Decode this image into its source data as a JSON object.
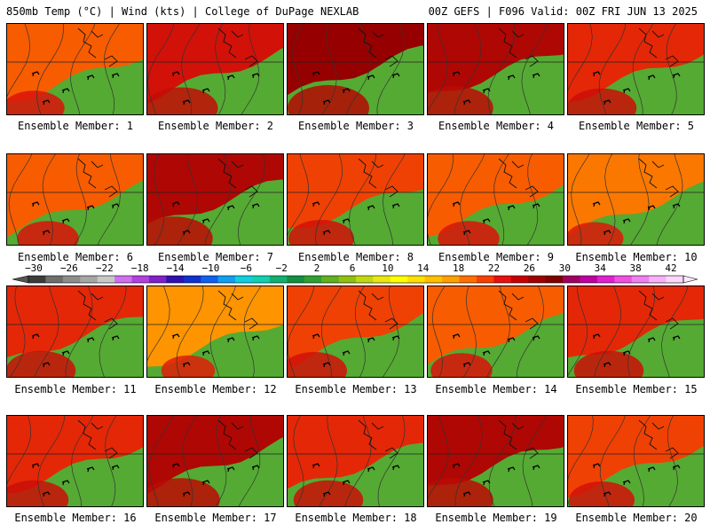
{
  "header": {
    "left": "850mb Temp (°C) | Wind (kts) | College of DuPage NEXLAB",
    "right": "00Z GEFS | F096 Valid: 00Z FRI JUN 13 2025"
  },
  "members": [
    {
      "label": "Ensemble Member: 1",
      "warmth": 0.55
    },
    {
      "label": "Ensemble Member: 2",
      "warmth": 0.7
    },
    {
      "label": "Ensemble Member: 3",
      "warmth": 0.8
    },
    {
      "label": "Ensemble Member: 4",
      "warmth": 0.75
    },
    {
      "label": "Ensemble Member: 5",
      "warmth": 0.65
    },
    {
      "label": "Ensemble Member: 6",
      "warmth": 0.55
    },
    {
      "label": "Ensemble Member: 7",
      "warmth": 0.75
    },
    {
      "label": "Ensemble Member: 8",
      "warmth": 0.6
    },
    {
      "label": "Ensemble Member: 9",
      "warmth": 0.55
    },
    {
      "label": "Ensemble Member: 10",
      "warmth": 0.5
    },
    {
      "label": "Ensemble Member: 11",
      "warmth": 0.65
    },
    {
      "label": "Ensemble Member: 12",
      "warmth": 0.45
    },
    {
      "label": "Ensemble Member: 13",
      "warmth": 0.6
    },
    {
      "label": "Ensemble Member: 14",
      "warmth": 0.55
    },
    {
      "label": "Ensemble Member: 15",
      "warmth": 0.65
    },
    {
      "label": "Ensemble Member: 16",
      "warmth": 0.65
    },
    {
      "label": "Ensemble Member: 17",
      "warmth": 0.75
    },
    {
      "label": "Ensemble Member: 18",
      "warmth": 0.65
    },
    {
      "label": "Ensemble Member: 19",
      "warmth": 0.75
    },
    {
      "label": "Ensemble Member: 20",
      "warmth": 0.6
    }
  ],
  "colorbar": {
    "labels": [
      "-30",
      "-26",
      "-22",
      "-18",
      "-14",
      "-10",
      "-6",
      "-2",
      "2",
      "6",
      "10",
      "14",
      "18",
      "22",
      "26",
      "30",
      "34",
      "38",
      "42"
    ],
    "colors": [
      "#3c3c3c",
      "#6e6e6e",
      "#8c8c8c",
      "#a6a6a6",
      "#c8c8c8",
      "#d070f0",
      "#b040e0",
      "#8020c8",
      "#3010b0",
      "#1030d0",
      "#1060f0",
      "#10a0f0",
      "#10d0e0",
      "#10d0b0",
      "#10b070",
      "#109040",
      "#30a030",
      "#60b020",
      "#90c010",
      "#c0d810",
      "#e8e810",
      "#ffff00",
      "#ffe000",
      "#ffc000",
      "#ffa000",
      "#ff7000",
      "#f84000",
      "#e81010",
      "#c80000",
      "#a00000",
      "#800000",
      "#a00060",
      "#c000a0",
      "#e020d0",
      "#f050e0",
      "#f080f0",
      "#f8b0f8",
      "#fcd8fc"
    ]
  }
}
